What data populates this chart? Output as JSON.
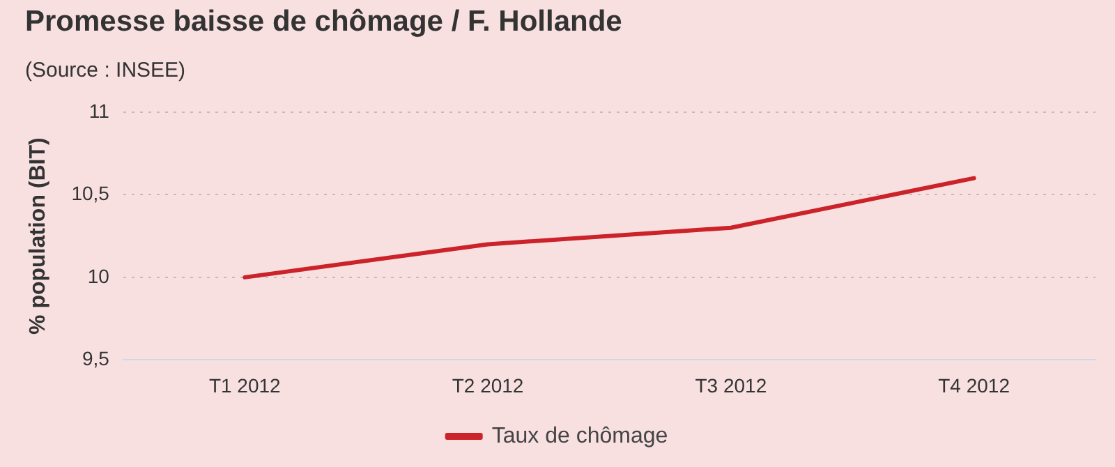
{
  "chart_data": {
    "type": "line",
    "title": "Promesse baisse de chômage / F. Hollande",
    "subtitle": "(Source : INSEE)",
    "ylabel": "% population (BIT)",
    "categories": [
      "T1 2012",
      "T2 2012",
      "T3 2012",
      "T4 2012"
    ],
    "series": [
      {
        "name": "Taux de chômage",
        "color": "#cc2229",
        "values": [
          10,
          10.2,
          10.3,
          10.6
        ]
      }
    ],
    "ylim": [
      9.5,
      11
    ],
    "yticks": [
      {
        "value": 9.5,
        "label": "9,5"
      },
      10,
      {
        "value": 10.5,
        "label": "10,5"
      },
      11
    ],
    "grid": "y",
    "legend": "bottom",
    "marker": "none",
    "line_style": "solid"
  }
}
